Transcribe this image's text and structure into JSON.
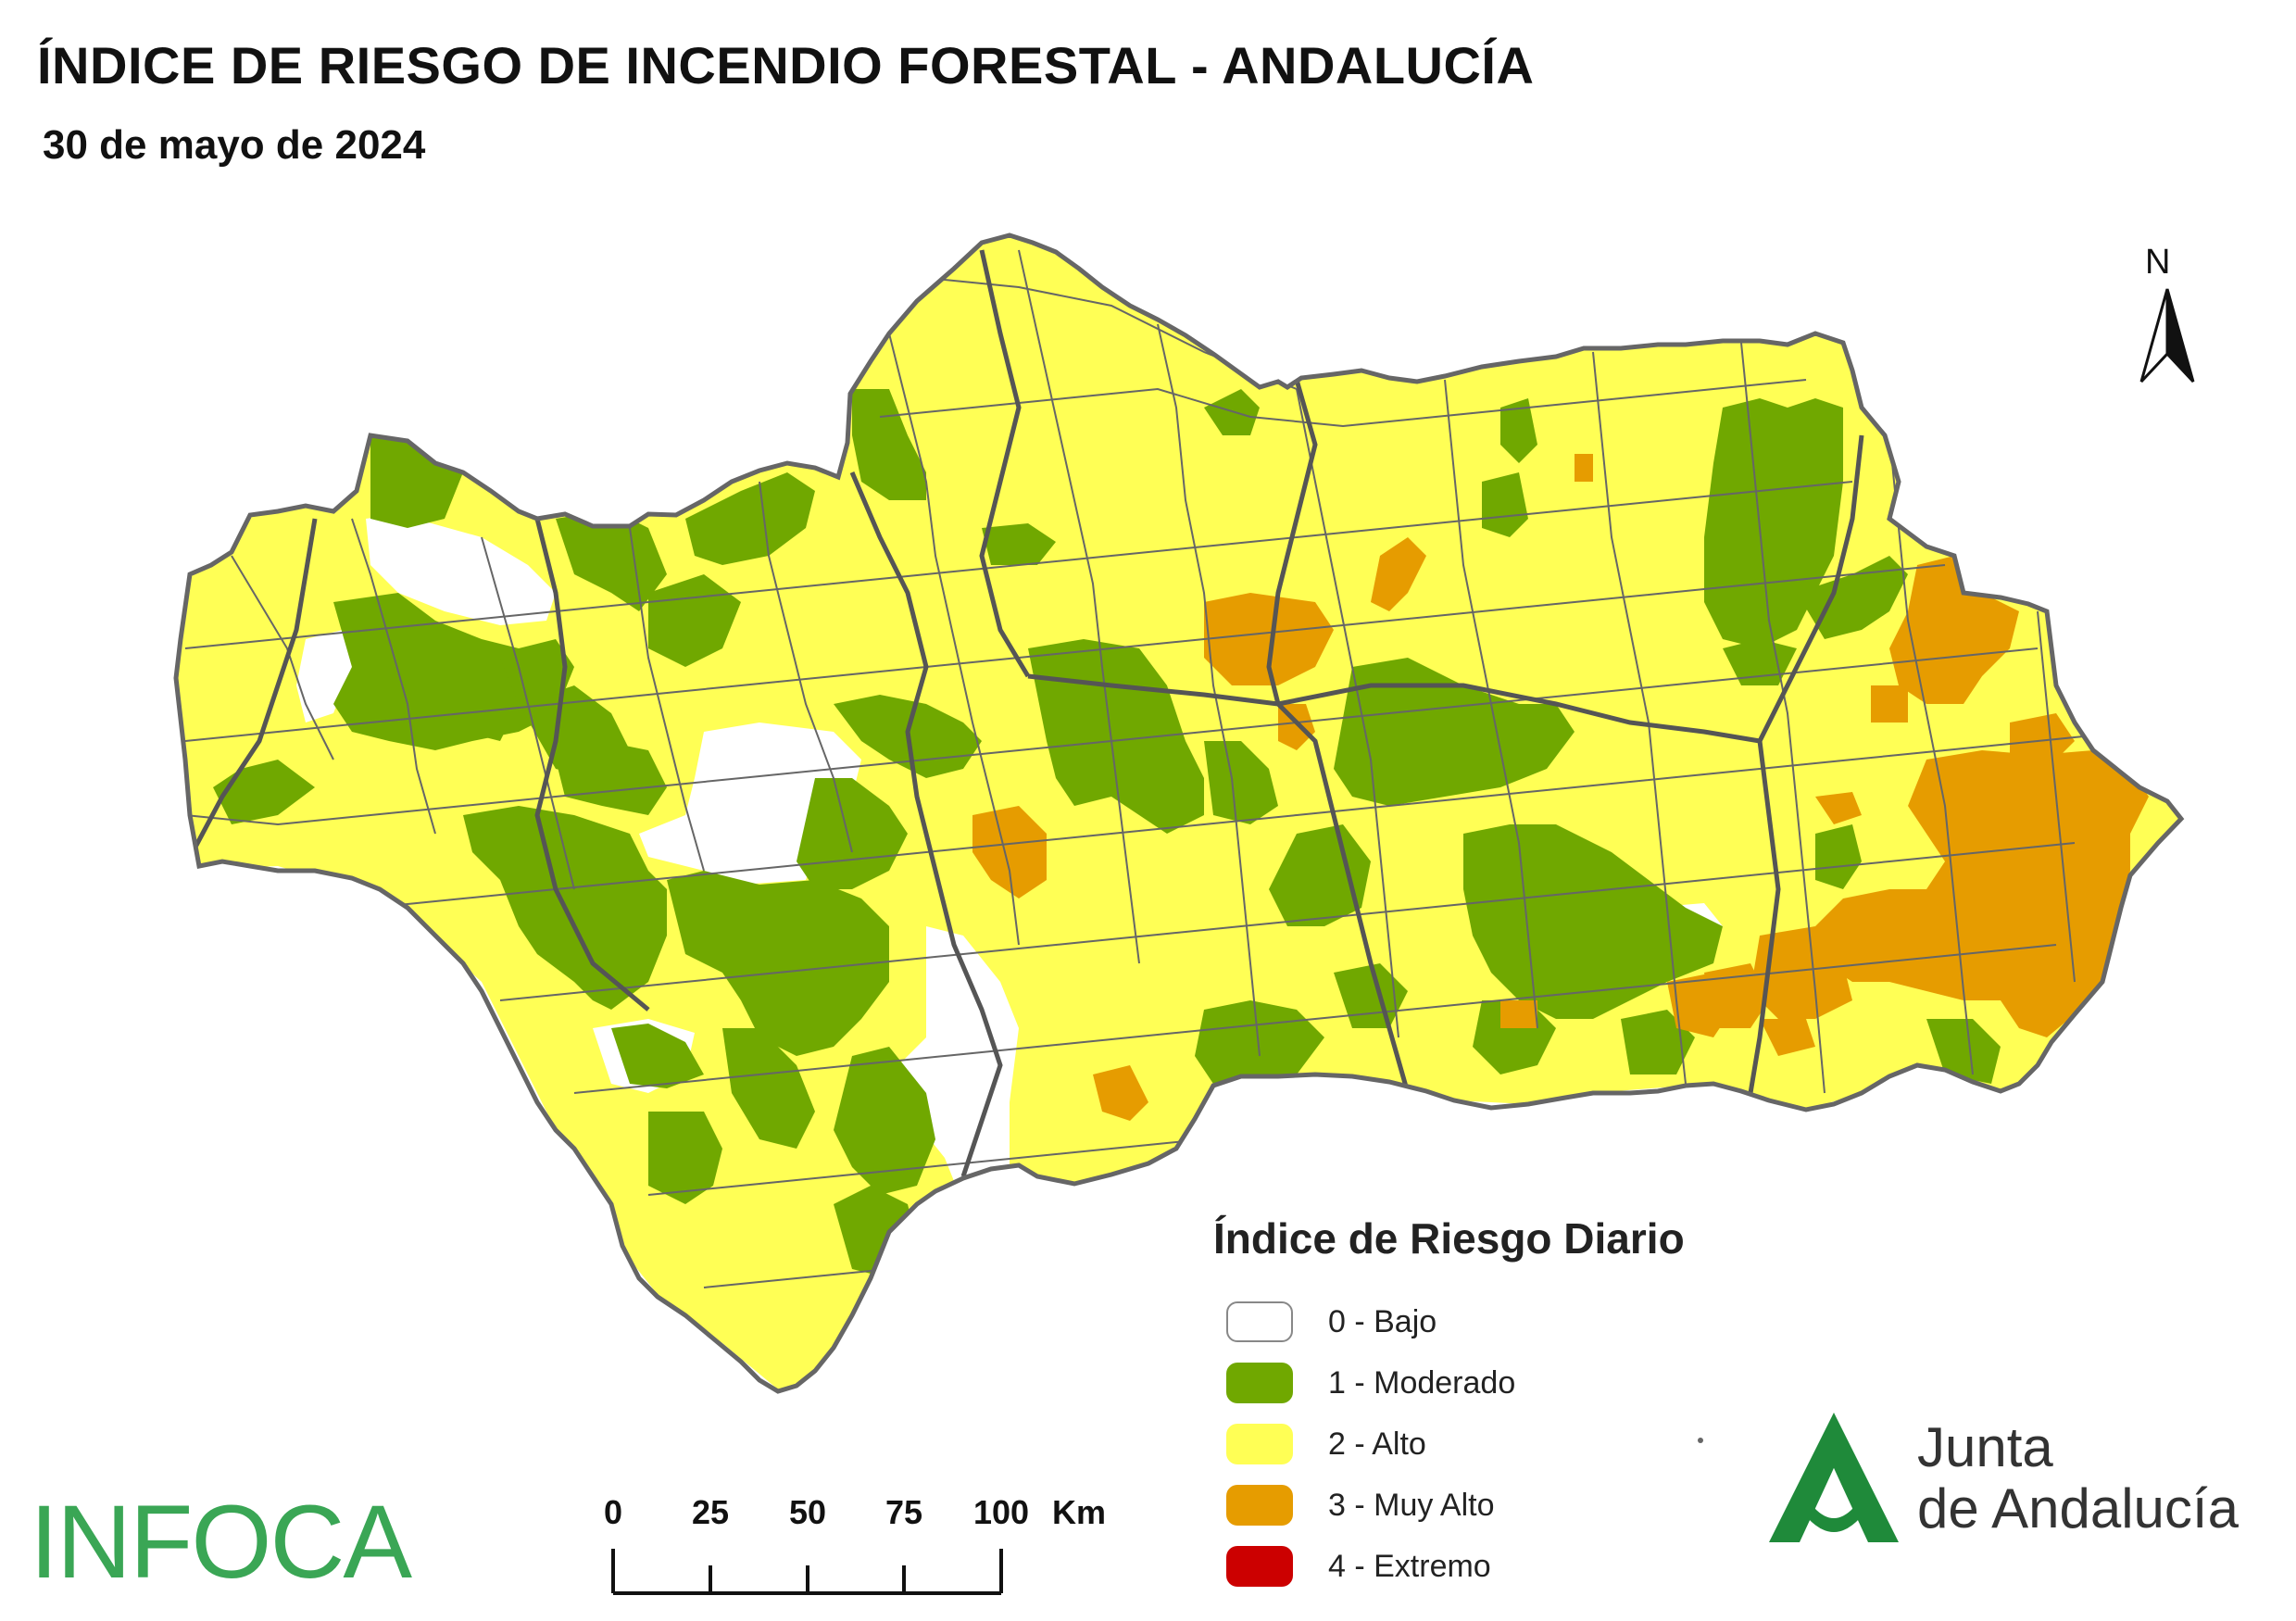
{
  "title": "ÍNDICE DE RIESGO DE INCENDIO FORESTAL - ANDALUCÍA",
  "subtitle": "30 de mayo de 2024",
  "north_label": "N",
  "legend": {
    "title": "Índice de Riesgo Diario",
    "items": [
      {
        "label": "0 - Bajo",
        "color": "#ffffff"
      },
      {
        "label": "1 - Moderado",
        "color": "#70a800"
      },
      {
        "label": "2 - Alto",
        "color": "#ffff55"
      },
      {
        "label": "3 - Muy Alto",
        "color": "#e69c00"
      },
      {
        "label": "4 - Extremo",
        "color": "#cc0000"
      }
    ]
  },
  "scale": {
    "ticks": [
      "0",
      "25",
      "50",
      "75",
      "100"
    ],
    "unit": "Km"
  },
  "logos": {
    "infoca": "INFOCA",
    "junta_line1": "Junta",
    "junta_line2": "de Andalucía"
  },
  "colors": {
    "low": "#ffffff",
    "moderate": "#70a800",
    "high": "#ffff55",
    "very_high": "#e69c00",
    "extreme": "#cc0000",
    "boundary": "#666666",
    "junta_green": "#1f8a3a"
  }
}
